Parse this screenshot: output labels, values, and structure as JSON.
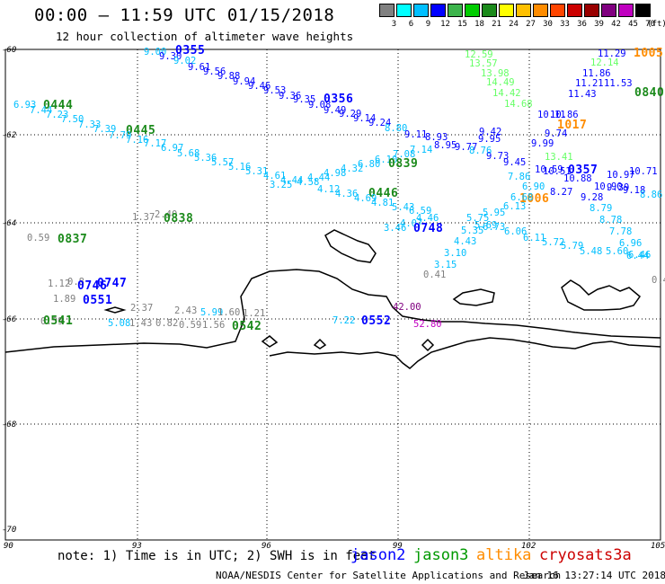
{
  "title": "00:00 – 11:59 UTC 01/15/2018",
  "subtitle": "12 hour collection of altimeter wave heights",
  "colorbar": {
    "values": [
      "3",
      "6",
      "9",
      "12",
      "15",
      "18",
      "21",
      "24",
      "27",
      "30",
      "33",
      "36",
      "39",
      "42",
      "45",
      "70"
    ],
    "unit": "(ft)",
    "colors": [
      "#808080",
      "#00ffff",
      "#00bfff",
      "#0000ff",
      "#3cb44b",
      "#00cc00",
      "#1b8a1b",
      "#ffff00",
      "#ffc000",
      "#ff8c00",
      "#ff4500",
      "#cc0000",
      "#990000",
      "#800080",
      "#c000c0",
      "#000000"
    ]
  },
  "axes": {
    "lat_labels": [
      "-60",
      "-62",
      "-64",
      "-66",
      "-68",
      "-70"
    ],
    "lon_labels": [
      "90",
      "93",
      "96",
      "99",
      "102",
      "105"
    ]
  },
  "observations": [
    {
      "t": "9.00",
      "c": "#00bfff"
    },
    {
      "t": "0355",
      "c": "#0000ff",
      "b": true
    },
    {
      "t": "9.30",
      "c": "#0000ff"
    },
    {
      "t": "9.02",
      "c": "#00bfff"
    },
    {
      "t": "9.61",
      "c": "#0000ff"
    },
    {
      "t": "9.56",
      "c": "#0000ff"
    },
    {
      "t": "9.88",
      "c": "#0000ff"
    },
    {
      "t": "9.94",
      "c": "#0000ff"
    },
    {
      "t": "9.46",
      "c": "#0000ff"
    },
    {
      "t": "9.53",
      "c": "#0000ff"
    },
    {
      "t": "9.36",
      "c": "#0000ff"
    },
    {
      "t": "9.35",
      "c": "#0000ff"
    },
    {
      "t": "0356",
      "c": "#0000ff",
      "b": true
    },
    {
      "t": "9.08",
      "c": "#0000ff"
    },
    {
      "t": "9.49",
      "c": "#0000ff"
    },
    {
      "t": "9.29",
      "c": "#0000ff"
    },
    {
      "t": "9.14",
      "c": "#0000ff"
    },
    {
      "t": "9.24",
      "c": "#0000ff"
    },
    {
      "t": "8.80",
      "c": "#00bfff"
    },
    {
      "t": "9.11",
      "c": "#0000ff"
    },
    {
      "t": "6.93",
      "c": "#00bfff"
    },
    {
      "t": "0444",
      "c": "#1b8a1b",
      "b": true
    },
    {
      "t": "7.44",
      "c": "#00bfff"
    },
    {
      "t": "7.23",
      "c": "#00bfff"
    },
    {
      "t": "7.50",
      "c": "#00bfff"
    },
    {
      "t": "7.33",
      "c": "#00bfff"
    },
    {
      "t": "7.39",
      "c": "#00bfff"
    },
    {
      "t": "0445",
      "c": "#1b8a1b",
      "b": true
    },
    {
      "t": "7.79",
      "c": "#00bfff"
    },
    {
      "t": "7.16",
      "c": "#00bfff"
    },
    {
      "t": "7.17",
      "c": "#00bfff"
    },
    {
      "t": "6.97",
      "c": "#00bfff"
    },
    {
      "t": "5.68",
      "c": "#00bfff"
    },
    {
      "t": "5.36",
      "c": "#00bfff"
    },
    {
      "t": "5.57",
      "c": "#00bfff"
    },
    {
      "t": "5.16",
      "c": "#00bfff"
    },
    {
      "t": "5.31",
      "c": "#00bfff"
    },
    {
      "t": "4.61",
      "c": "#00bfff"
    },
    {
      "t": "3.25",
      "c": "#00bfff"
    },
    {
      "t": "4.44",
      "c": "#00bfff"
    },
    {
      "t": "4.58",
      "c": "#00bfff"
    },
    {
      "t": "4.44",
      "c": "#00bfff"
    },
    {
      "t": "4.98",
      "c": "#00bfff"
    },
    {
      "t": "4.32",
      "c": "#00bfff"
    },
    {
      "t": "6.80",
      "c": "#00bfff"
    },
    {
      "t": "6.10",
      "c": "#00bfff"
    },
    {
      "t": "0839",
      "c": "#1b8a1b",
      "b": true
    },
    {
      "t": "7.08",
      "c": "#00bfff"
    },
    {
      "t": "7.14",
      "c": "#00bfff"
    },
    {
      "t": "4.12",
      "c": "#00bfff"
    },
    {
      "t": "4.36",
      "c": "#00bfff"
    },
    {
      "t": "0446",
      "c": "#1b8a1b",
      "b": true
    },
    {
      "t": "4.69",
      "c": "#00bfff"
    },
    {
      "t": "4.81",
      "c": "#00bfff"
    },
    {
      "t": "5.43",
      "c": "#00bfff"
    },
    {
      "t": "6.59",
      "c": "#00bfff"
    },
    {
      "t": "3.46",
      "c": "#00bfff"
    },
    {
      "t": "4.07",
      "c": "#00bfff"
    },
    {
      "t": "0748",
      "c": "#0000ff",
      "b": true
    },
    {
      "t": "4.46",
      "c": "#00bfff"
    },
    {
      "t": "12.59",
      "c": "#66ff66"
    },
    {
      "t": "13.57",
      "c": "#66ff66"
    },
    {
      "t": "13.98",
      "c": "#66ff66"
    },
    {
      "t": "14.49",
      "c": "#66ff66"
    },
    {
      "t": "14.42",
      "c": "#66ff66"
    },
    {
      "t": "14.68",
      "c": "#66ff66"
    },
    {
      "t": "11.29",
      "c": "#0000ff"
    },
    {
      "t": "1005",
      "c": "#ff8c00",
      "b": true
    },
    {
      "t": "12.14",
      "c": "#66ff66"
    },
    {
      "t": "11.86",
      "c": "#0000ff"
    },
    {
      "t": "11.21",
      "c": "#0000ff"
    },
    {
      "t": "11.43",
      "c": "#0000ff"
    },
    {
      "t": "11.53",
      "c": "#0000ff"
    },
    {
      "t": "0840",
      "c": "#1b8a1b",
      "b": true
    },
    {
      "t": "10.11",
      "c": "#0000ff"
    },
    {
      "t": "10.86",
      "c": "#0000ff"
    },
    {
      "t": "1017",
      "c": "#ff8c00",
      "b": true
    },
    {
      "t": "9.42",
      "c": "#0000ff"
    },
    {
      "t": "9.95",
      "c": "#0000ff"
    },
    {
      "t": "9.73",
      "c": "#0000ff"
    },
    {
      "t": "9.99",
      "c": "#0000ff"
    },
    {
      "t": "8.93",
      "c": "#0000ff"
    },
    {
      "t": "8.95",
      "c": "#0000ff"
    },
    {
      "t": "9.77",
      "c": "#0000ff"
    },
    {
      "t": "9.74",
      "c": "#0000ff"
    },
    {
      "t": "13.41",
      "c": "#66ff66"
    },
    {
      "t": "8.76",
      "c": "#00bfff"
    },
    {
      "t": "9.45",
      "c": "#0000ff"
    },
    {
      "t": "7.86",
      "c": "#00bfff"
    },
    {
      "t": "10.59",
      "c": "#0000ff"
    },
    {
      "t": "10.51",
      "c": "#0000ff"
    },
    {
      "t": "0357",
      "c": "#0000ff",
      "b": true
    },
    {
      "t": "10.97",
      "c": "#0000ff"
    },
    {
      "t": "10.71",
      "c": "#0000ff"
    },
    {
      "t": "6.90",
      "c": "#00bfff"
    },
    {
      "t": "10.88",
      "c": "#0000ff"
    },
    {
      "t": "10.90",
      "c": "#0000ff"
    },
    {
      "t": "9.39",
      "c": "#0000ff"
    },
    {
      "t": "9.18",
      "c": "#0000ff"
    },
    {
      "t": "8.86",
      "c": "#00bfff"
    },
    {
      "t": "1006",
      "c": "#ff8c00",
      "b": true
    },
    {
      "t": "8.27",
      "c": "#0000ff"
    },
    {
      "t": "9.28",
      "c": "#0000ff"
    },
    {
      "t": "8.79",
      "c": "#00bfff"
    },
    {
      "t": "8.78",
      "c": "#00bfff"
    },
    {
      "t": "7.78",
      "c": "#00bfff"
    },
    {
      "t": "6.96",
      "c": "#00bfff"
    },
    {
      "t": "6.46",
      "c": "#00bfff"
    },
    {
      "t": "6.68",
      "c": "#00bfff"
    },
    {
      "t": "6.13",
      "c": "#00bfff"
    },
    {
      "t": "5.95",
      "c": "#00bfff"
    },
    {
      "t": "5.75",
      "c": "#00bfff"
    },
    {
      "t": "5.69",
      "c": "#00bfff"
    },
    {
      "t": "5.35",
      "c": "#00bfff"
    },
    {
      "t": "6.73",
      "c": "#00bfff"
    },
    {
      "t": "6.06",
      "c": "#00bfff"
    },
    {
      "t": "6.11",
      "c": "#00bfff"
    },
    {
      "t": "5.72",
      "c": "#00bfff"
    },
    {
      "t": "5.79",
      "c": "#00bfff"
    },
    {
      "t": "5.48",
      "c": "#00bfff"
    },
    {
      "t": "5.60",
      "c": "#00bfff"
    },
    {
      "t": "6.44",
      "c": "#00bfff"
    },
    {
      "t": "4.43",
      "c": "#00bfff"
    },
    {
      "t": "3.10",
      "c": "#00bfff"
    },
    {
      "t": "3.15",
      "c": "#00bfff"
    },
    {
      "t": "0.41",
      "c": "#808080"
    },
    {
      "t": "0.4",
      "c": "#808080"
    },
    {
      "t": "1.37",
      "c": "#808080"
    },
    {
      "t": "2.40",
      "c": "#808080"
    },
    {
      "t": "0838",
      "c": "#1b8a1b",
      "b": true
    },
    {
      "t": "0.59",
      "c": "#808080"
    },
    {
      "t": "0837",
      "c": "#1b8a1b",
      "b": true
    },
    {
      "t": "1.12",
      "c": "#808080"
    },
    {
      "t": "0.8",
      "c": "#808080"
    },
    {
      "t": "0746",
      "c": "#0000ff",
      "b": true
    },
    {
      "t": "0747",
      "c": "#0000ff",
      "b": true
    },
    {
      "t": "1.89",
      "c": "#808080"
    },
    {
      "t": "0551",
      "c": "#0000ff",
      "b": true
    },
    {
      "t": "2.37",
      "c": "#808080"
    },
    {
      "t": "0.59",
      "c": "#808080"
    },
    {
      "t": "0541",
      "c": "#1b8a1b",
      "b": true
    },
    {
      "t": "5.08",
      "c": "#00bfff"
    },
    {
      "t": "1.43",
      "c": "#808080"
    },
    {
      "t": "0.82",
      "c": "#808080"
    },
    {
      "t": "2.43",
      "c": "#808080"
    },
    {
      "t": "5.99",
      "c": "#00bfff"
    },
    {
      "t": "0.59",
      "c": "#808080"
    },
    {
      "t": "1.56",
      "c": "#808080"
    },
    {
      "t": "1.60",
      "c": "#808080"
    },
    {
      "t": "1.21",
      "c": "#808080"
    },
    {
      "t": "0542",
      "c": "#1b8a1b",
      "b": true
    },
    {
      "t": "7.22",
      "c": "#00bfff"
    },
    {
      "t": "0552",
      "c": "#0000ff",
      "b": true
    },
    {
      "t": "42.00",
      "c": "#800080"
    },
    {
      "t": "52.80",
      "c": "#c000c0"
    }
  ],
  "note": "note: 1) Time is in UTC; 2) SWH is in feet",
  "satellites": [
    {
      "name": "jason2",
      "color": "#0000ff"
    },
    {
      "name": "jason3",
      "color": "#009900"
    },
    {
      "name": "altika",
      "color": "#ff8c00"
    },
    {
      "name": "cryosat",
      "color": "#cc0000"
    },
    {
      "name": "s3a",
      "color": "#cc0000"
    }
  ],
  "footer": {
    "agency": "NOAA/NESDIS Center for Satellite Applications and Research",
    "timestamp": "Jan 16 13:27:14 UTC 2018"
  }
}
